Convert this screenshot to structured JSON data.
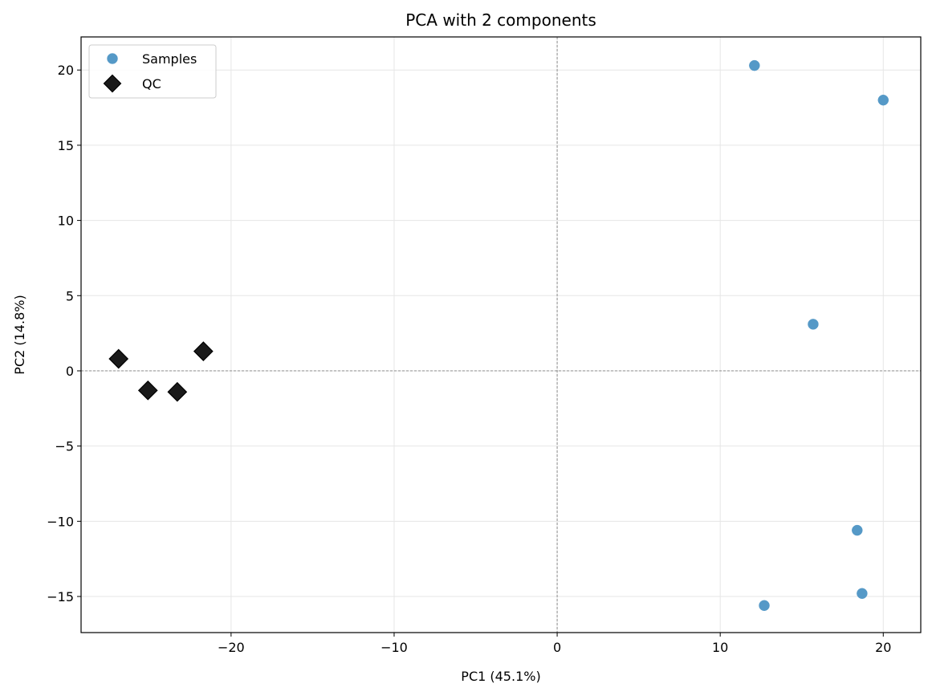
{
  "chart_data": {
    "type": "scatter",
    "title": "PCA with 2 components",
    "xlabel": "PC1 (45.1%)",
    "ylabel": "PC2 (14.8%)",
    "xlim": [
      -29.2,
      22.3
    ],
    "ylim": [
      -17.4,
      22.2
    ],
    "xticks": [
      -20,
      -10,
      0,
      10,
      20
    ],
    "yticks": [
      -15,
      -10,
      -5,
      0,
      5,
      10,
      15,
      20
    ],
    "xtick_labels": [
      "−20",
      "−10",
      "0",
      "10",
      "20"
    ],
    "ytick_labels": [
      "−15",
      "−10",
      "−5",
      "0",
      "5",
      "10",
      "15",
      "20"
    ],
    "grid": true,
    "zero_lines": true,
    "legend_position": "top-left",
    "series": [
      {
        "name": "Samples",
        "marker": "circle",
        "color": "#5599c7",
        "points": [
          {
            "x": 12.1,
            "y": 20.3
          },
          {
            "x": 20.0,
            "y": 18.0
          },
          {
            "x": 15.7,
            "y": 3.1
          },
          {
            "x": 18.4,
            "y": -10.6
          },
          {
            "x": 18.7,
            "y": -14.8
          },
          {
            "x": 12.7,
            "y": -15.6
          }
        ]
      },
      {
        "name": "QC",
        "marker": "diamond",
        "color": "#1a1a1a",
        "points": [
          {
            "x": -26.9,
            "y": 0.8
          },
          {
            "x": -25.1,
            "y": -1.3
          },
          {
            "x": -23.3,
            "y": -1.4
          },
          {
            "x": -21.7,
            "y": 1.3
          }
        ]
      }
    ]
  }
}
